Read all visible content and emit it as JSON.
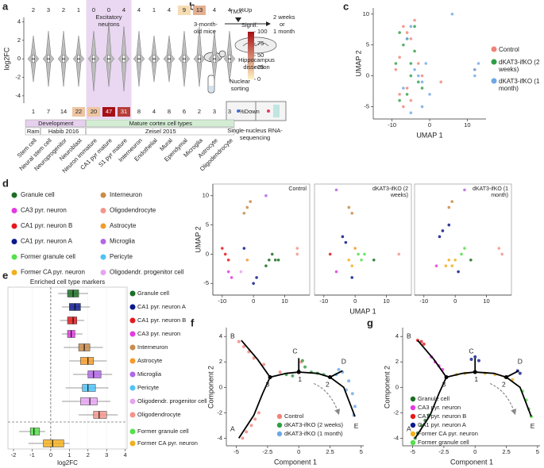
{
  "chart_data": [
    {
      "type": "violin",
      "panel": "a",
      "ylabel": "log2FC",
      "highlight_label": "Excitatory neurons",
      "up_label": "%Up",
      "down_label": "%Down",
      "categories": [
        "Stem cell",
        "Neural stem cell",
        "Neuroprogenitor",
        "Neuroblast",
        "Neuron immature",
        "CA1 pyr mature",
        "S1 pyr mature",
        "Interneuron",
        "Endothelial",
        "Mural",
        "Ependymal",
        "Microglia",
        "Astrocyte",
        "Oligodendrocyte"
      ],
      "up": [
        2,
        3,
        2,
        1,
        0,
        0,
        4,
        4,
        1,
        4,
        9,
        13,
        4,
        4
      ],
      "down": [
        1,
        7,
        14,
        22,
        20,
        47,
        31,
        8,
        4,
        8,
        6,
        2,
        3,
        3
      ],
      "up_signif": [
        0,
        0,
        0,
        0,
        0,
        0,
        0,
        0,
        0,
        0,
        10,
        30,
        0,
        0
      ],
      "down_signif": [
        0,
        0,
        0,
        20,
        20,
        100,
        80,
        0,
        0,
        0,
        0,
        0,
        0,
        0
      ],
      "min": [
        -2.5,
        -3,
        -3,
        -3,
        -3.5,
        -3,
        -3.5,
        -3,
        -2.5,
        -2.5,
        -3,
        -3,
        -2.5,
        -2.5
      ],
      "q1": [
        -0.4,
        -0.4,
        -0.4,
        -0.4,
        -0.4,
        -0.4,
        -0.4,
        -0.4,
        -0.4,
        -0.4,
        -0.4,
        -0.4,
        -0.4,
        -0.4
      ],
      "median": [
        0,
        0,
        0,
        0,
        0,
        0,
        0,
        0,
        0,
        0,
        0,
        0,
        0,
        0
      ],
      "q3": [
        0.4,
        0.4,
        0.4,
        0.4,
        0.4,
        0.4,
        0.4,
        0.4,
        0.4,
        0.4,
        0.4,
        0.4,
        0.4,
        0.4
      ],
      "max": [
        2.5,
        3,
        3,
        2.5,
        3,
        4,
        3.5,
        3,
        2.5,
        2.5,
        3,
        3.5,
        3,
        3
      ],
      "violin_color": "#bdbdbd",
      "ylim": [
        -6.5,
        5.5
      ],
      "yticks": [
        -4,
        -2,
        0,
        2,
        4
      ],
      "colorbar": {
        "title": "Signif.",
        "lim": [
          0,
          100
        ],
        "ticks": [
          0,
          25,
          50,
          75,
          100
        ],
        "colors": [
          "#fff3c4",
          "#a50f15"
        ]
      },
      "group_rows": [
        [
          "Development",
          "Mature cortex cell types"
        ],
        [
          "Ram",
          "Habib 2016",
          "Zeisel 2015"
        ]
      ]
    },
    {
      "type": "scatter",
      "panel": "c",
      "xlabel": "UMAP 1",
      "ylabel": "UMAP 2",
      "xlim": [
        -15,
        15
      ],
      "ylim": [
        -7,
        11
      ],
      "xticks": [
        -10,
        0,
        10
      ],
      "yticks": [
        -5,
        0,
        5,
        10
      ],
      "series": [
        {
          "name": "Control",
          "color": "#f08378",
          "x": [
            -7,
            -6,
            -5,
            -4,
            -8,
            -9,
            -6,
            -5,
            -7,
            -2,
            3,
            -3,
            -8,
            12
          ],
          "y": [
            8,
            7,
            6,
            9,
            3,
            1,
            -2,
            -4,
            -5,
            0,
            -1,
            2,
            -3,
            1
          ]
        },
        {
          "name": "dKAT3-ifKO (2 weeks)",
          "color": "#2f9e44",
          "x": [
            -8,
            -7,
            -6,
            -5,
            -9,
            -4,
            -3,
            -6,
            -5,
            -2,
            -8,
            -4
          ],
          "y": [
            7,
            5,
            6,
            2,
            2,
            4,
            -1,
            -3,
            0,
            -2,
            -4,
            8
          ]
        },
        {
          "name": "dKAT3-ifKO (1 month)",
          "color": "#6ea8e6",
          "x": [
            -6,
            -5,
            -4,
            -3,
            -2,
            -1,
            0,
            -2,
            -7,
            12,
            13,
            12,
            6,
            -5
          ],
          "y": [
            6,
            8,
            1,
            0,
            -1,
            2,
            -3,
            -5,
            -2,
            1,
            2,
            0,
            10,
            -6
          ]
        }
      ]
    },
    {
      "type": "facets",
      "panel": "d",
      "xlabel": "UMAP 1",
      "ylabel": "UMAP 2",
      "xlim": [
        -13,
        18
      ],
      "ylim": [
        -7,
        12
      ],
      "xticks": [
        -10,
        0,
        10
      ],
      "yticks": [
        -5,
        0,
        5,
        10
      ],
      "legend": [
        {
          "name": "Granule cell",
          "color": "#1b6e23"
        },
        {
          "name": "CA3 pyr. neuron",
          "color": "#e23be0"
        },
        {
          "name": "CA1 pyr. neuron B",
          "color": "#e41a1c"
        },
        {
          "name": "CA1 pyr. neuron A",
          "color": "#0d1a8c"
        },
        {
          "name": "Former granule cell",
          "color": "#56e04b"
        },
        {
          "name": "Former CA pyr. neuron",
          "color": "#f2b01e"
        },
        {
          "name": "Interneuron",
          "color": "#c98b4a"
        },
        {
          "name": "Oligodendrocyte",
          "color": "#f3958c"
        },
        {
          "name": "Astrocyte",
          "color": "#f39c2b"
        },
        {
          "name": "Microglia",
          "color": "#b266e6"
        },
        {
          "name": "Pericyte",
          "color": "#4fc3f7"
        },
        {
          "name": "Oligodendr. progenitor cell",
          "color": "#e5a3f2"
        }
      ],
      "facets": [
        {
          "title": "Control",
          "x": [
            5,
            7,
            6,
            4,
            8,
            -8,
            -7,
            -9,
            -10,
            -8,
            -3,
            0,
            1,
            -2,
            -1,
            -3,
            14,
            14,
            -2,
            4,
            -4
          ],
          "y": [
            -1,
            -1,
            0,
            -2,
            -1,
            -3,
            -4,
            0,
            1,
            -1,
            1,
            -5,
            -4,
            8,
            9,
            7,
            0,
            1,
            -1,
            10,
            -3
          ],
          "cell_type": [
            0,
            0,
            0,
            0,
            0,
            1,
            1,
            2,
            2,
            2,
            3,
            3,
            3,
            6,
            6,
            6,
            7,
            7,
            8,
            9,
            11
          ]
        },
        {
          "title": "dKAT3-ifKO (2 weeks)",
          "x": [
            6,
            1,
            2,
            3,
            -4,
            -3,
            -1,
            -6,
            -1,
            -2,
            -2,
            -1,
            14,
            -8,
            -6,
            0
          ],
          "y": [
            -1,
            0,
            -1,
            0,
            3,
            2,
            -4,
            -3,
            -2,
            -1,
            8,
            7,
            0,
            0,
            11,
            1
          ],
          "cell_type": [
            0,
            4,
            4,
            4,
            3,
            3,
            3,
            1,
            5,
            5,
            6,
            6,
            7,
            2,
            9,
            8
          ]
        },
        {
          "title": "dKAT3-ifKO (1 month)",
          "x": [
            -2,
            -1,
            0,
            -3,
            -5,
            -4,
            -2,
            1,
            2,
            3,
            -2,
            -1,
            14,
            15,
            5,
            -6,
            3
          ],
          "y": [
            -1,
            -2,
            -1,
            -2,
            3,
            4,
            5,
            -3,
            0,
            1,
            8,
            9,
            1,
            0,
            -1,
            -2,
            11
          ],
          "cell_type": [
            5,
            5,
            5,
            5,
            3,
            3,
            3,
            3,
            4,
            4,
            6,
            6,
            7,
            7,
            0,
            1,
            9
          ]
        }
      ]
    },
    {
      "type": "box",
      "panel": "e",
      "title": "Enriched cell type markers",
      "xlabel": "log2FC",
      "xlim": [
        -2.3,
        4.1
      ],
      "xticks": [
        -2,
        -1,
        0,
        1,
        2,
        3,
        4
      ],
      "categories": [
        "Granule cell",
        "CA1 pyr. neuron A",
        "CA1 pyr. neuron B",
        "CA3 pyr. neuron",
        "Interneuron",
        "Astrocyte",
        "Microglia",
        "Pericyte",
        "Oligodendr. progenitor cell",
        "Oligodendrocyte",
        "Former granule cell",
        "Former CA pyr. neuron"
      ],
      "colors": [
        "#1b6e23",
        "#0d1a8c",
        "#e41a1c",
        "#e23be0",
        "#c98b4a",
        "#f39c2b",
        "#b266e6",
        "#4fc3f7",
        "#e5a3f2",
        "#f3958c",
        "#56e04b",
        "#f2b01e"
      ],
      "min": [
        0.4,
        0.6,
        0.5,
        0.6,
        0.7,
        1.0,
        1.2,
        0.8,
        0.6,
        1.5,
        -1.7,
        -1.2
      ],
      "q1": [
        0.9,
        1.0,
        0.9,
        0.9,
        1.5,
        1.6,
        2.0,
        1.7,
        1.6,
        2.3,
        -1.1,
        -0.4
      ],
      "median": [
        1.2,
        1.3,
        1.2,
        1.1,
        1.8,
        2.0,
        2.3,
        2.0,
        2.1,
        2.6,
        -0.9,
        0.1
      ],
      "q3": [
        1.5,
        1.6,
        1.4,
        1.3,
        2.1,
        2.3,
        2.7,
        2.4,
        2.5,
        3.0,
        -0.6,
        0.7
      ],
      "max": [
        2.0,
        2.1,
        1.8,
        1.7,
        2.8,
        3.0,
        3.3,
        3.1,
        3.2,
        3.6,
        -0.3,
        1.0
      ]
    },
    {
      "type": "trajectory",
      "panel": "f",
      "xlabel": "Component 1",
      "ylabel": "Component 2",
      "xlim": [
        -5.8,
        5.2
      ],
      "ylim": [
        -4.6,
        4.7
      ],
      "xticks": [
        -5,
        -2.5,
        0,
        2.5,
        5
      ],
      "yticks": [
        -4,
        -2,
        0,
        2,
        4
      ],
      "branches": [
        "A",
        "B",
        "C",
        "D",
        "E"
      ],
      "nodes": [
        "1",
        "2",
        "3"
      ],
      "series": [
        {
          "name": "Control",
          "color": "#f08378",
          "x": [
            -4.5,
            -4.2,
            -3.8,
            -3.5,
            -3.2,
            -4.8,
            -4.4,
            -4,
            -3.6,
            -2.8,
            -1.5,
            0.2
          ],
          "y": [
            -4,
            -3.5,
            -3,
            -2.5,
            -2,
            3.6,
            3.2,
            2.8,
            2.3,
            1.8,
            1.2,
            2
          ]
        },
        {
          "name": "dKAT3-ifKO (2 weeks)",
          "color": "#2f9e44",
          "x": [
            -1,
            0,
            0.5,
            1,
            1.5,
            -0.5,
            0.3,
            2
          ],
          "y": [
            1,
            1.3,
            1.6,
            1.2,
            1.1,
            0.9,
            2.1,
            1
          ]
        },
        {
          "name": "dKAT3-ifKO (1 month)",
          "color": "#6ea8e6",
          "x": [
            2.5,
            3,
            3.5,
            4,
            4.3,
            4.5,
            3.2,
            3.8,
            4.4
          ],
          "y": [
            0.8,
            1,
            1.2,
            0.5,
            -0.5,
            -1.5,
            1.4,
            -0.2,
            -2.2
          ]
        }
      ]
    },
    {
      "type": "trajectory",
      "panel": "g",
      "xlabel": "Component 1",
      "ylabel": "Component 2",
      "xlim": [
        -5.8,
        5.2
      ],
      "ylim": [
        -4.6,
        4.7
      ],
      "xticks": [
        -5,
        -2.5,
        0,
        2.5,
        5
      ],
      "yticks": [
        -4,
        -2,
        0,
        2,
        4
      ],
      "branches": [
        "A",
        "B",
        "C",
        "D",
        "E"
      ],
      "nodes": [
        "1",
        "2",
        "3"
      ],
      "series": [
        {
          "name": "Granule cell",
          "color": "#1b6e23",
          "x": [
            -4.8,
            -4.6,
            -4.3,
            -4,
            -3.7
          ],
          "y": [
            -4,
            -3.6,
            -3,
            -2.6,
            -2.2
          ]
        },
        {
          "name": "CA3 pyr. neuron",
          "color": "#e23be0",
          "x": [
            -3.5,
            -3.2,
            -2.9,
            -2.6
          ],
          "y": [
            2.4,
            2,
            1.7,
            1.4
          ]
        },
        {
          "name": "CA1 pyr. neuron B",
          "color": "#e41a1c",
          "x": [
            -4.6,
            -4.3,
            -4.1
          ],
          "y": [
            3.7,
            3.6,
            3.4
          ]
        },
        {
          "name": "CA1 pyr. neuron A",
          "color": "#0d1a8c",
          "x": [
            -0.3,
            0,
            0.3,
            3.4,
            3.6
          ],
          "y": [
            2.2,
            2.4,
            2.1,
            1.3,
            1.1
          ]
        },
        {
          "name": "Former CA pyr. neuron",
          "color": "#f2b01e",
          "x": [
            -1.5,
            -0.8,
            0,
            0.8,
            1.6,
            2.4,
            3
          ],
          "y": [
            1,
            1.1,
            1.2,
            1.1,
            1,
            0.8,
            0.6
          ]
        },
        {
          "name": "Former granule cell",
          "color": "#56e04b",
          "x": [
            3.8,
            4.1,
            4.3,
            4.5
          ],
          "y": [
            -0.3,
            -1,
            -1.7,
            -2.3
          ]
        }
      ]
    }
  ],
  "diagram": {
    "panel": "b",
    "mice": "3-month-old mice",
    "treatment": "TMX",
    "timepoints": [
      "2 weeks",
      "or",
      "1 month"
    ],
    "steps": [
      "Hippocampus dissection",
      "Nuclear sorting",
      "Single-nucleus RNA-sequencing"
    ]
  }
}
